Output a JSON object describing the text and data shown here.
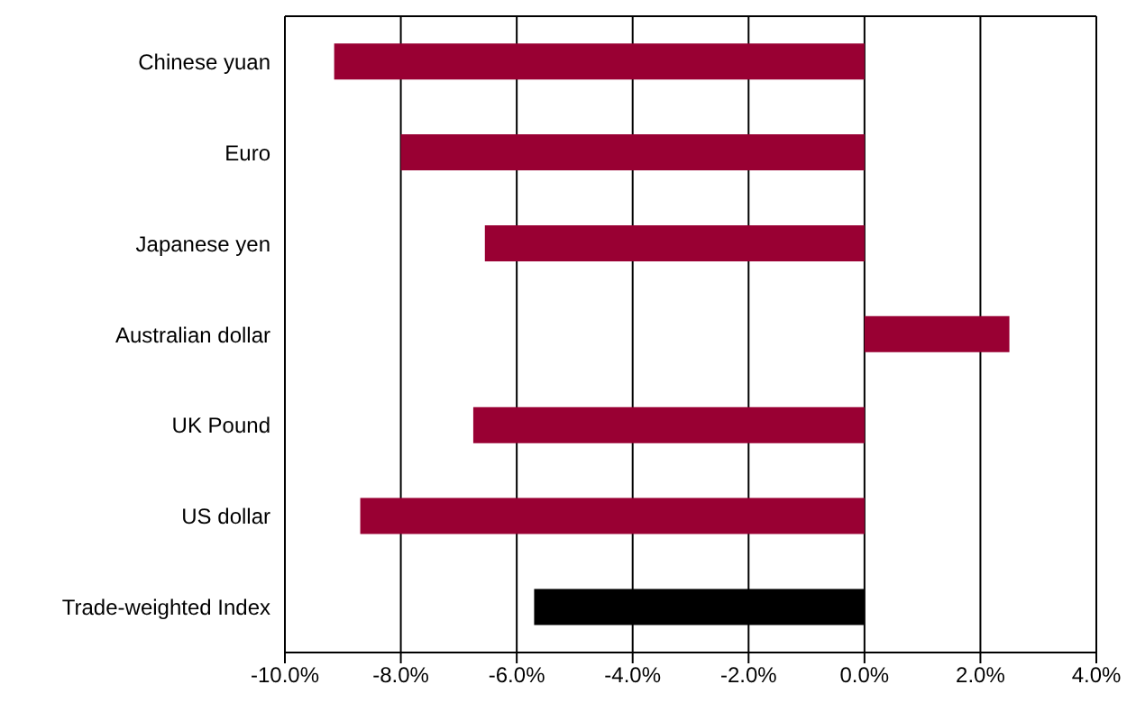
{
  "chart_data": {
    "type": "bar",
    "orientation": "horizontal",
    "categories": [
      "Chinese yuan",
      "Euro",
      "Japanese yen",
      "Australian dollar",
      "UK Pound",
      "US dollar",
      "Trade-weighted Index"
    ],
    "values": [
      -9.15,
      -8.0,
      -6.55,
      2.5,
      -6.75,
      -8.7,
      -5.7
    ],
    "colors": [
      "#990033",
      "#990033",
      "#990033",
      "#990033",
      "#990033",
      "#990033",
      "#000000"
    ],
    "xlim": [
      -10,
      4
    ],
    "xticks": [
      {
        "value": -10,
        "label": "-10.0%"
      },
      {
        "value": -8,
        "label": "-8.0%"
      },
      {
        "value": -6,
        "label": "-6.0%"
      },
      {
        "value": -4,
        "label": "-4.0%"
      },
      {
        "value": -2,
        "label": "-2.0%"
      },
      {
        "value": 0,
        "label": "0.0%"
      },
      {
        "value": 2,
        "label": "2.0%"
      },
      {
        "value": 4,
        "label": "4.0%"
      }
    ],
    "grid": "x"
  }
}
